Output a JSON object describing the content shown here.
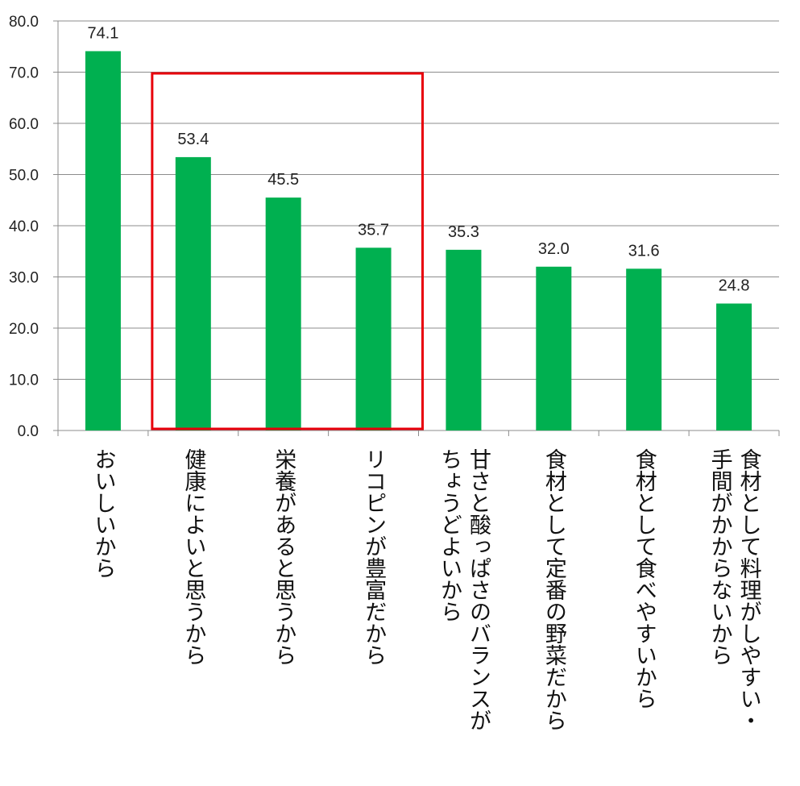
{
  "chart_data": {
    "type": "bar",
    "categories": [
      [
        "おいしいから"
      ],
      [
        "健康によいと思うから"
      ],
      [
        "栄養があると思うから"
      ],
      [
        "リコピンが豊富だから"
      ],
      [
        "甘さと酸っぱさのバランスが",
        "ちょうどよいから"
      ],
      [
        "食材として定番の野菜だから"
      ],
      [
        "食材として食べやすいから"
      ],
      [
        "食材として料理がしやすい・",
        "手間がかからないから"
      ]
    ],
    "values": [
      74.1,
      53.4,
      45.5,
      35.7,
      35.3,
      32.0,
      31.6,
      24.8
    ],
    "value_labels": [
      "74.1",
      "53.4",
      "45.5",
      "35.7",
      "35.3",
      "32.0",
      "31.6",
      "24.8"
    ],
    "yticks": [
      "0.0",
      "10.0",
      "20.0",
      "30.0",
      "40.0",
      "50.0",
      "60.0",
      "70.0",
      "80.0"
    ],
    "ylim": [
      0,
      80
    ],
    "grid": true,
    "bar_color": "#00b050",
    "highlight": {
      "from_category": 1,
      "to_category": 3,
      "color": "#e8000b"
    },
    "title": "",
    "xlabel": "",
    "ylabel": ""
  }
}
